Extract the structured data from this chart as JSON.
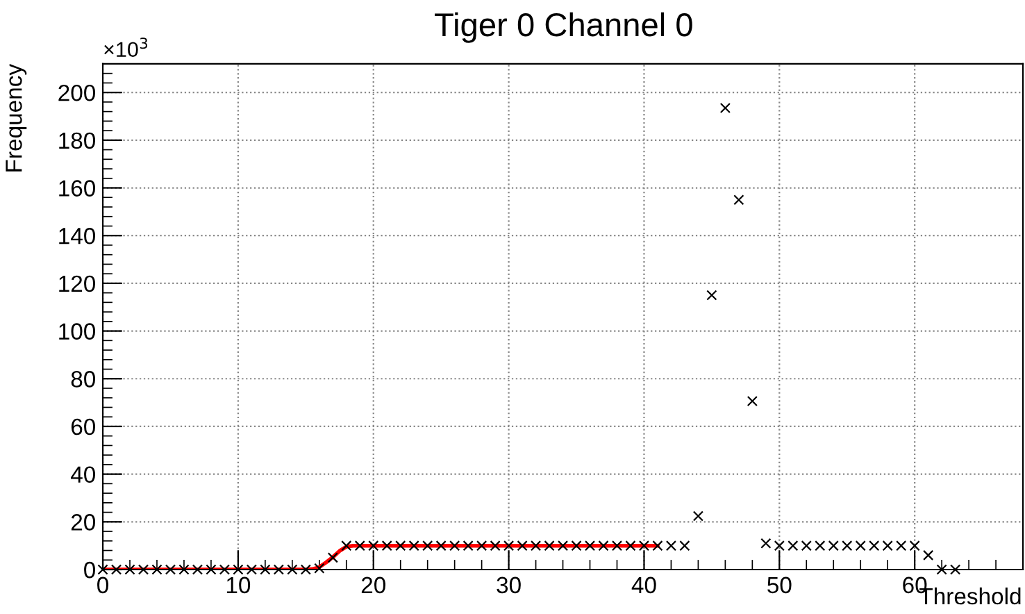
{
  "chart_data": {
    "type": "scatter",
    "title": "Tiger 0 Channel 0",
    "xlabel": "Threshold",
    "ylabel": "Frequency",
    "annotations": [
      "×10$^{3}$"
    ],
    "xlim": [
      0,
      68
    ],
    "xticks": [
      0,
      10,
      20,
      30,
      40,
      50,
      60
    ],
    "ylim": [
      0,
      212
    ],
    "yticks": [
      0,
      20,
      40,
      60,
      80,
      100,
      120,
      140,
      160,
      180,
      200
    ],
    "grid": true,
    "marker": "cross",
    "series": [
      {
        "type": "line",
        "marker": "none",
        "color": "#ff0000",
        "x": [
          0,
          5,
          10,
          15,
          15.5,
          16,
          16.5,
          17,
          17.5,
          18,
          18.5,
          19,
          25,
          30,
          35,
          41
        ],
        "values": [
          0,
          0,
          0,
          0,
          0.2,
          1,
          3,
          5.2,
          7.8,
          9.6,
          10,
          10,
          10,
          10,
          10,
          10
        ]
      },
      {
        "color": "#000000",
        "x": [
          0,
          1,
          2,
          3,
          4,
          5,
          6,
          7,
          8,
          9,
          10,
          11,
          12,
          13,
          14,
          15,
          16,
          17,
          18,
          19,
          20,
          21,
          22,
          23,
          24,
          25,
          26,
          27,
          28,
          29,
          30,
          31,
          32,
          33,
          34,
          35,
          36,
          37,
          38,
          39,
          40,
          41,
          42,
          43,
          44,
          45,
          46,
          47,
          48,
          49,
          50,
          51,
          52,
          53,
          54,
          55,
          56,
          57,
          58,
          59,
          60,
          61,
          62,
          63
        ],
        "values": [
          0,
          0,
          0,
          0,
          0,
          0,
          0,
          0,
          0,
          0,
          0,
          0,
          0,
          0,
          0,
          0,
          0.5,
          5,
          10,
          10,
          10,
          10,
          10,
          10,
          10,
          10,
          10,
          10,
          10,
          10,
          10,
          10,
          10,
          10,
          10,
          10,
          10,
          10,
          10,
          10,
          10,
          10,
          10,
          10,
          22.4,
          115,
          193.5,
          155,
          70.6,
          11,
          10,
          10,
          10,
          10,
          10,
          10,
          10,
          10,
          10,
          10,
          10,
          6,
          0,
          0
        ]
      }
    ]
  }
}
